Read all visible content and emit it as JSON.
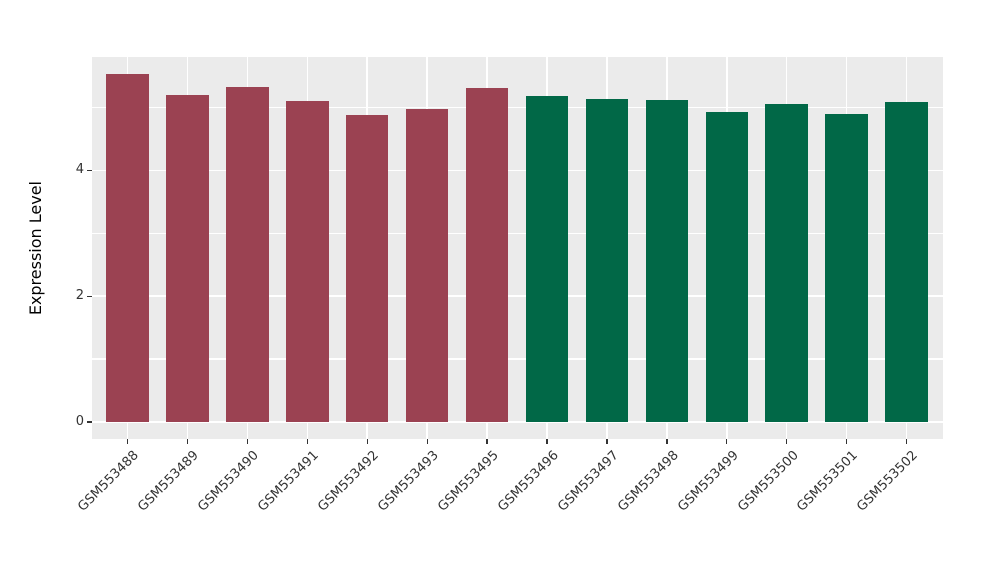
{
  "chart_data": {
    "type": "bar",
    "title": "",
    "xlabel": "",
    "ylabel": "Expression Level",
    "categories": [
      "GSM553488",
      "GSM553489",
      "GSM553490",
      "GSM553491",
      "GSM553492",
      "GSM553493",
      "GSM553495",
      "GSM553496",
      "GSM553497",
      "GSM553498",
      "GSM553499",
      "GSM553500",
      "GSM553501",
      "GSM553502"
    ],
    "values": [
      5.54,
      5.2,
      5.33,
      5.11,
      4.88,
      4.98,
      5.31,
      5.19,
      5.14,
      5.12,
      4.93,
      5.06,
      4.89,
      5.09
    ],
    "groups": [
      "group1",
      "group1",
      "group1",
      "group1",
      "group1",
      "group1",
      "group1",
      "group2",
      "group2",
      "group2",
      "group2",
      "group2",
      "group2",
      "group2"
    ],
    "group_colors": {
      "group1": "#9B4252",
      "group2": "#016847"
    },
    "yticks": [
      0,
      2,
      4
    ],
    "grid_values": [
      0,
      1,
      2,
      3,
      4,
      5
    ],
    "ylim": [
      0,
      5.8
    ],
    "grid": "on",
    "legend_position": "none",
    "panel_background": "#EBEBEB",
    "grid_color": "#FFFFFF",
    "tick_color": "#333333",
    "tick_label_color": "#333333",
    "axis_title_color": "#000000"
  }
}
